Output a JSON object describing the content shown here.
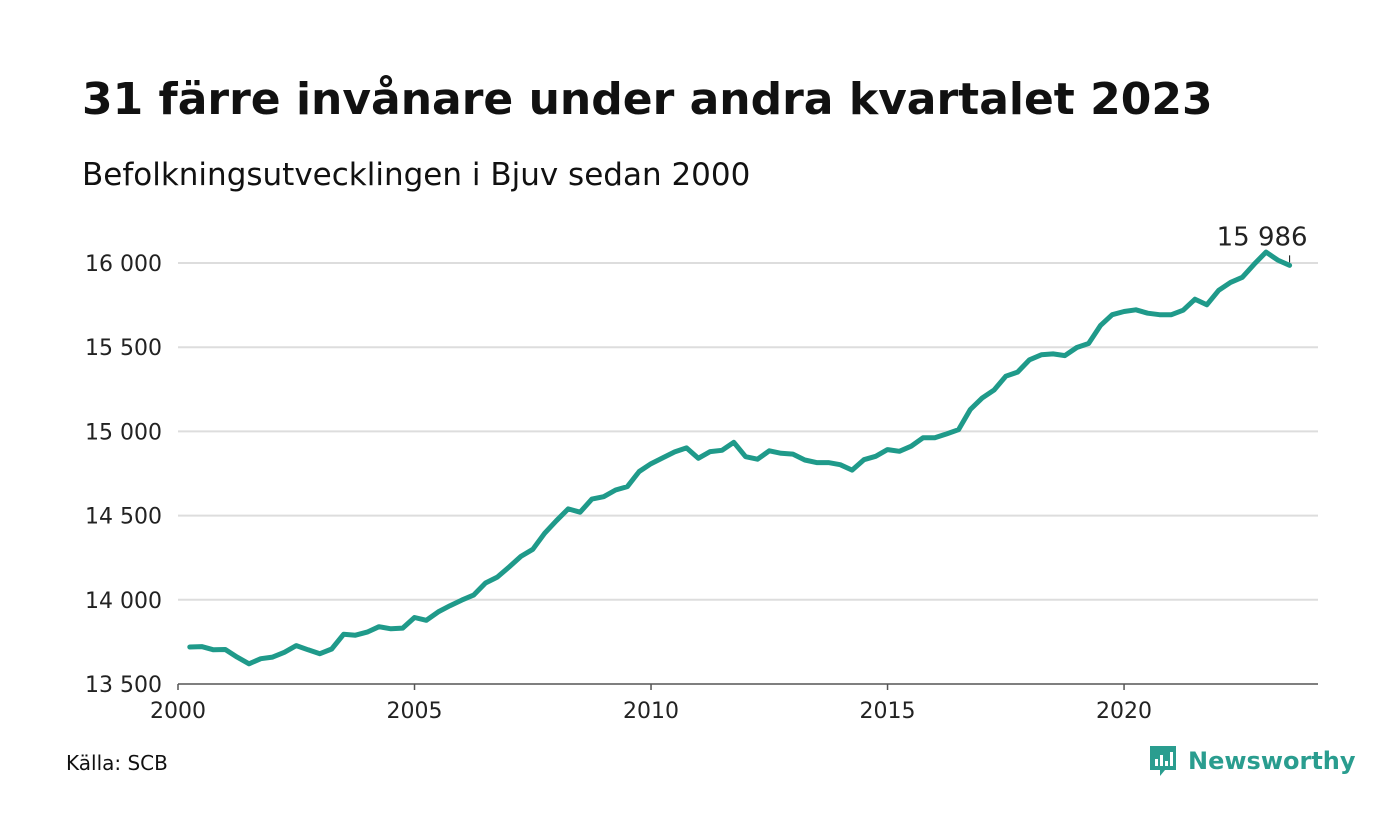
{
  "header": {
    "title": "31 färre invånare under andra kvartalet 2023",
    "subtitle": "Befolkningsutvecklingen i Bjuv sedan 2000"
  },
  "footer": {
    "source": "Källa: SCB",
    "brand": "Newsworthy"
  },
  "colors": {
    "line": "#1f9a8a",
    "grid": "#dddddd",
    "brand": "#2a9d8f"
  },
  "chart_data": {
    "type": "line",
    "title": "31 färre invånare under andra kvartalet 2023",
    "subtitle": "Befolkningsutvecklingen i Bjuv sedan 2000",
    "xlabel": "",
    "ylabel": "",
    "xlim": [
      2000,
      2024.1
    ],
    "ylim": [
      13500,
      16000
    ],
    "x_ticks": [
      2000,
      2005,
      2010,
      2015,
      2020
    ],
    "x_tick_labels": [
      "2000",
      "2005",
      "2010",
      "2015",
      "2020"
    ],
    "y_ticks": [
      13500,
      14000,
      14500,
      15000,
      15500,
      16000
    ],
    "y_tick_labels": [
      "13 500",
      "14 000",
      "14 500",
      "15 000",
      "15 500",
      "16 000"
    ],
    "grid": true,
    "end_label": "15 986",
    "series": [
      {
        "x": [
          2000.25,
          2000.5,
          2000.75,
          2001.0,
          2001.25,
          2001.5,
          2001.75,
          2002.0,
          2002.25,
          2002.5,
          2002.75,
          2003.0,
          2003.25,
          2003.5,
          2003.75,
          2004.0,
          2004.25,
          2004.5,
          2004.75,
          2005.0,
          2005.25,
          2005.5,
          2005.75,
          2006.0,
          2006.25,
          2006.5,
          2006.75,
          2007.0,
          2007.25,
          2007.5,
          2007.75,
          2008.0,
          2008.25,
          2008.5,
          2008.75,
          2009.0,
          2009.25,
          2009.5,
          2009.75,
          2010.0,
          2010.25,
          2010.5,
          2010.75,
          2011.0,
          2011.25,
          2011.5,
          2011.75,
          2012.0,
          2012.25,
          2012.5,
          2012.75,
          2013.0,
          2013.25,
          2013.5,
          2013.75,
          2014.0,
          2014.25,
          2014.5,
          2014.75,
          2015.0,
          2015.25,
          2015.5,
          2015.75,
          2016.0,
          2016.25,
          2016.5,
          2016.75,
          2017.0,
          2017.25,
          2017.5,
          2017.75,
          2018.0,
          2018.25,
          2018.5,
          2018.75,
          2019.0,
          2019.25,
          2019.5,
          2019.75,
          2020.0,
          2020.25,
          2020.5,
          2020.75,
          2021.0,
          2021.25,
          2021.5,
          2021.75,
          2022.0,
          2022.25,
          2022.5,
          2022.75,
          2023.0,
          2023.25,
          2023.5
        ],
        "values": [
          13720,
          13722,
          13703,
          13705,
          13660,
          13620,
          13650,
          13660,
          13688,
          13728,
          13703,
          13680,
          13708,
          13795,
          13790,
          13808,
          13840,
          13828,
          13832,
          13895,
          13878,
          13928,
          13965,
          13998,
          14028,
          14100,
          14135,
          14195,
          14258,
          14300,
          14395,
          14470,
          14540,
          14520,
          14598,
          14612,
          14652,
          14672,
          14762,
          14808,
          14843,
          14878,
          14902,
          14840,
          14880,
          14888,
          14935,
          14850,
          14835,
          14885,
          14870,
          14865,
          14830,
          14815,
          14815,
          14802,
          14770,
          14832,
          14852,
          14892,
          14882,
          14912,
          14962,
          14962,
          14985,
          15010,
          15130,
          15198,
          15245,
          15328,
          15352,
          15425,
          15455,
          15460,
          15450,
          15498,
          15522,
          15628,
          15693,
          15712,
          15722,
          15702,
          15693,
          15693,
          15720,
          15785,
          15752,
          15838,
          15885,
          15915,
          15992,
          16065,
          16017,
          15986
        ]
      }
    ]
  }
}
